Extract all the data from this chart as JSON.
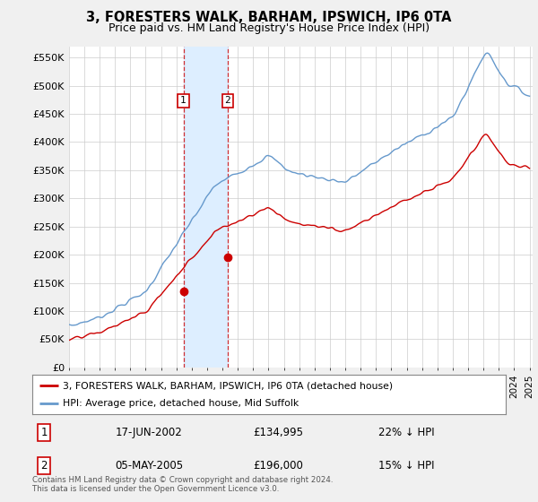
{
  "title": "3, FORESTERS WALK, BARHAM, IPSWICH, IP6 0TA",
  "subtitle": "Price paid vs. HM Land Registry's House Price Index (HPI)",
  "ylim": [
    0,
    570000
  ],
  "yticks": [
    0,
    50000,
    100000,
    150000,
    200000,
    250000,
    300000,
    350000,
    400000,
    450000,
    500000,
    550000
  ],
  "ytick_labels": [
    "£0",
    "£50K",
    "£100K",
    "£150K",
    "£200K",
    "£250K",
    "£300K",
    "£350K",
    "£400K",
    "£450K",
    "£500K",
    "£550K"
  ],
  "hpi_color": "#6699cc",
  "price_color": "#cc0000",
  "highlight_color": "#ddeeff",
  "sale1_date": "17-JUN-2002",
  "sale1_price": "£134,995",
  "sale1_hpi": "22% ↓ HPI",
  "sale1_year": 2002.46,
  "sale1_value": 134995,
  "sale2_date": "05-MAY-2005",
  "sale2_price": "£196,000",
  "sale2_hpi": "15% ↓ HPI",
  "sale2_year": 2005.33,
  "sale2_value": 196000,
  "legend_label_price": "3, FORESTERS WALK, BARHAM, IPSWICH, IP6 0TA (detached house)",
  "legend_label_hpi": "HPI: Average price, detached house, Mid Suffolk",
  "footer": "Contains HM Land Registry data © Crown copyright and database right 2024.\nThis data is licensed under the Open Government Licence v3.0.",
  "background_color": "#f0f0f0",
  "plot_bg_color": "#ffffff",
  "xlim_start": 1995.0,
  "xlim_end": 2025.2
}
